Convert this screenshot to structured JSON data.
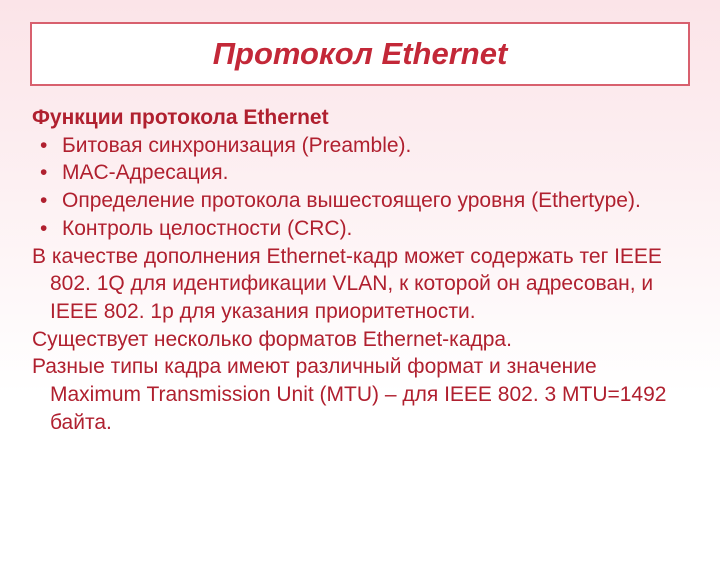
{
  "colors": {
    "title_text": "#c32838",
    "body_text": "#b0202f",
    "title_border": "#d8606e",
    "gradient_top": "#fbe4e8",
    "gradient_bottom": "#ffffff"
  },
  "typography": {
    "title_fontsize": 31,
    "body_fontsize": 21,
    "title_style": "bold italic",
    "font_family": "Arial"
  },
  "title": "Протокол Ethernet",
  "subtitle": "Функции протокола Ethernet",
  "bullets": [
    "Битовая синхронизация (Preamble).",
    "MAC-Адресация.",
    "Определение протокола вышестоящего уровня (Ethertype).",
    "Контроль целостности (CRC)."
  ],
  "paragraphs": [
    "В качестве дополнения Ethernet-кадр может содержать тег IEEE 802. 1Q для идентификации VLAN, к которой он адресован, и IEEE 802. 1p для указания приоритетности.",
    "Существует несколько форматов Ethernet-кадра.",
    "Разные типы кадра имеют различный формат и значение Maximum Transmission Unit (MTU) – для IEEE 802. 3 MTU=1492 байта."
  ]
}
